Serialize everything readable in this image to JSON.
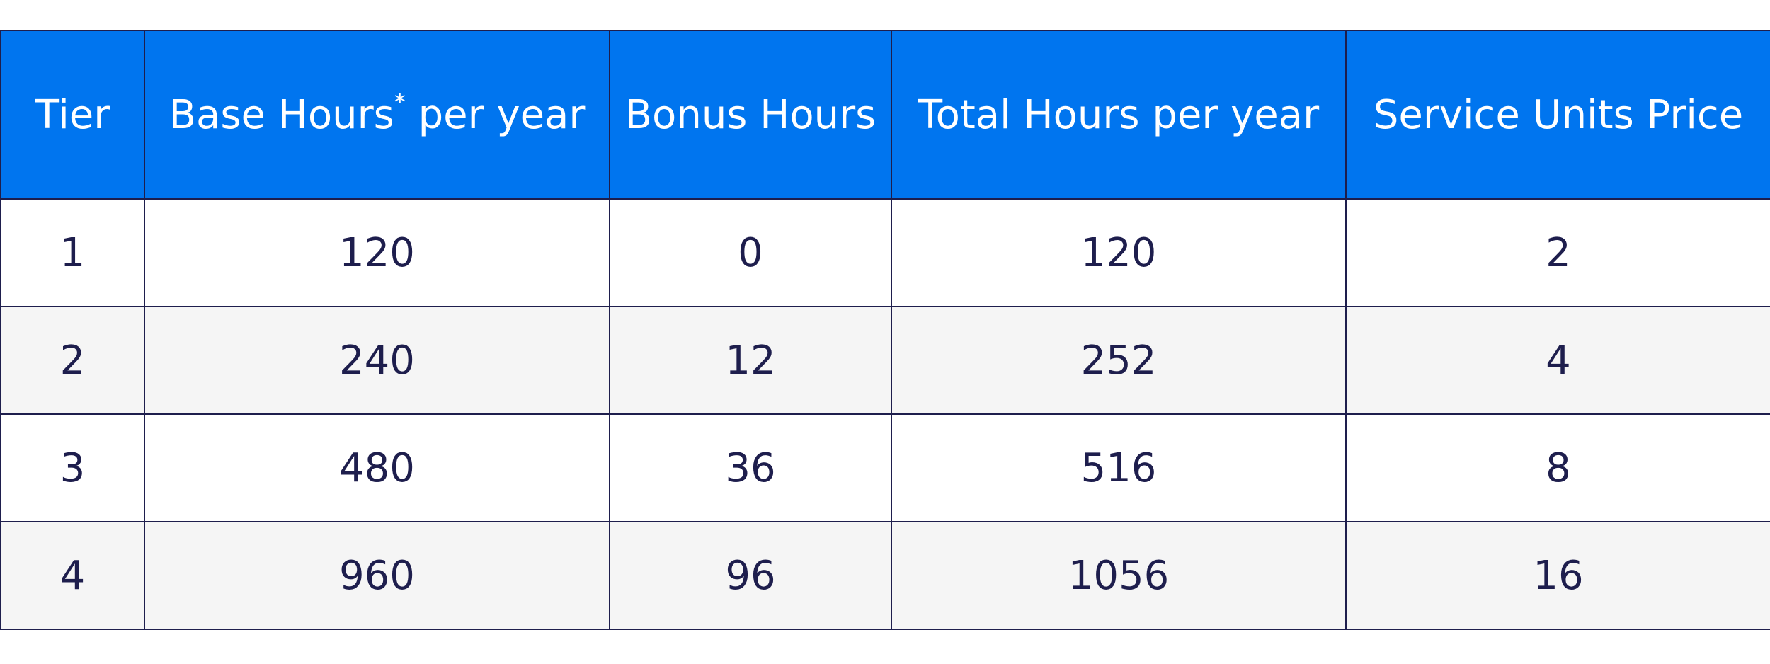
{
  "table": {
    "headers": [
      {
        "label": "Tier",
        "sup": ""
      },
      {
        "label": "Base Hours",
        "sup": "*",
        "suffix": " per year"
      },
      {
        "label": "Bonus Hours",
        "sup": ""
      },
      {
        "label": "Total Hours per year",
        "sup": ""
      },
      {
        "label": "Service Units Price",
        "sup": ""
      }
    ],
    "rows": [
      [
        "1",
        "120",
        "0",
        "120",
        "2"
      ],
      [
        "2",
        "240",
        "12",
        "252",
        "4"
      ],
      [
        "3",
        "480",
        "36",
        "516",
        "8"
      ],
      [
        "4",
        "960",
        "96",
        "1056",
        "16"
      ]
    ]
  },
  "colors": {
    "header_bg": "#0075ef",
    "header_text": "#ffffff",
    "border": "#1e1e4d",
    "cell_text": "#1e1e4d",
    "stripe_bg": "#f5f5f5"
  }
}
